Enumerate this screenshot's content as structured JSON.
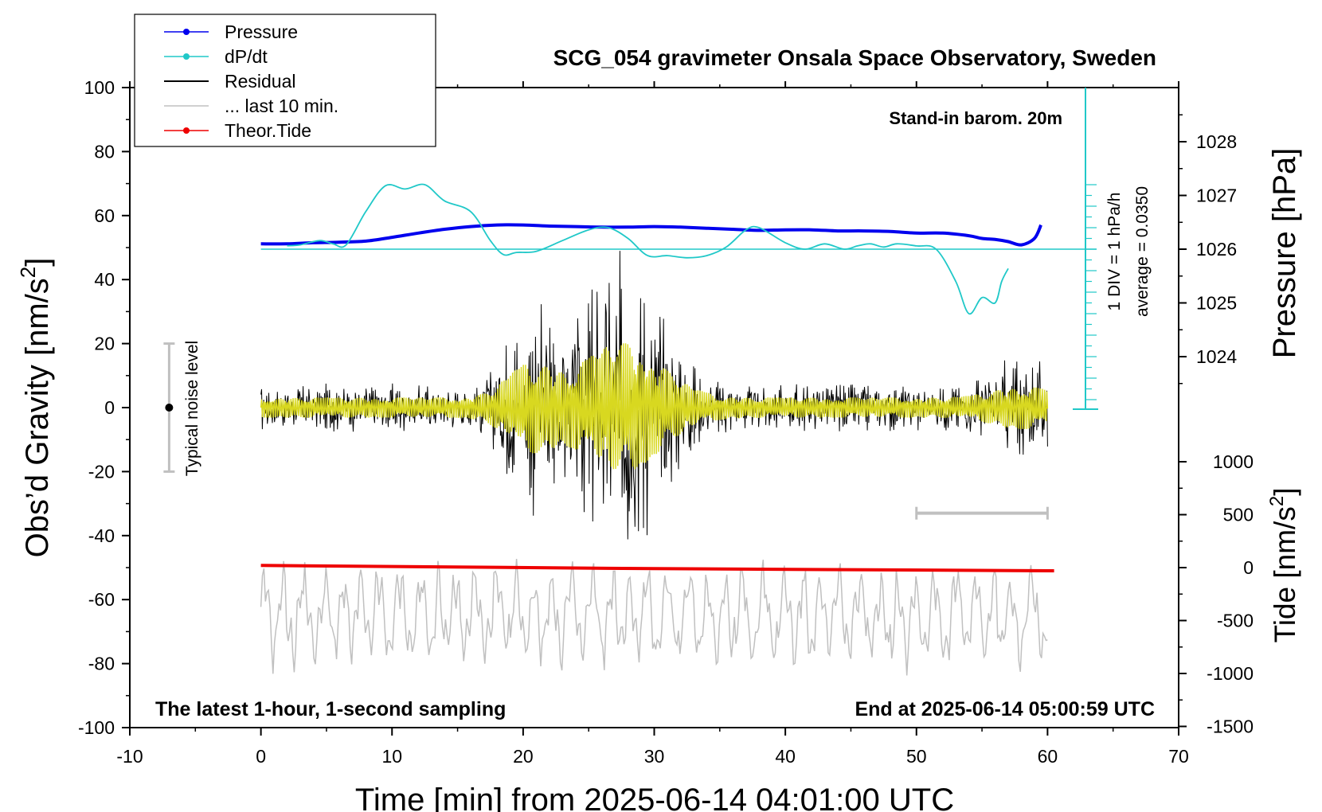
{
  "chart_data": {
    "type": "line",
    "title": "SCG_054 gravimeter Onsala Space Observatory, Sweden",
    "xlabel": "Time [min] from 2025-06-14 04:01:00 UTC",
    "ylabel_left": {
      "main": "Obs’d Gravity [nm/s",
      "sup": "2",
      "end": "]"
    },
    "ylabel_right_top": "Pressure [hPa]",
    "ylabel_right_bottom": {
      "main": "Tide [nm/s",
      "sup": "2",
      "end": "]"
    },
    "xlim": [
      -10,
      70
    ],
    "ylim_left": [
      -100,
      100
    ],
    "x_ticks": [
      "-10",
      "0",
      "10",
      "20",
      "30",
      "40",
      "50",
      "60",
      "70"
    ],
    "y_ticks_left": [
      "100",
      "80",
      "60",
      "40",
      "20",
      "0",
      "-20",
      "-40",
      "-60",
      "-80",
      "-100"
    ],
    "pressure_ticks": [
      "1028",
      "1027",
      "1026",
      "1025",
      "1024"
    ],
    "tide_ticks": [
      "1000",
      "500",
      "0",
      "-500",
      "-1000",
      "-1500"
    ],
    "annotations": {
      "barometer": "Stand-in barom. 20m",
      "latest": "The latest 1-hour, 1-second sampling",
      "end_time": "End at 2025-06-14 05:00:59 UTC",
      "noise": "Typical noise level",
      "div": "1 DIV = 1 hPa/h",
      "average": "average = 0.0350"
    },
    "legend": [
      {
        "label": "Pressure",
        "color": "#0000ee",
        "marker": true
      },
      {
        "label": "dP/dt",
        "color": "#20c8c8",
        "marker": true
      },
      {
        "label": "Residual",
        "color": "#000000",
        "marker": false
      },
      {
        "label": "... last 10 min.",
        "color": "#c0c0c0",
        "marker": false
      },
      {
        "label": "Theor.Tide",
        "color": "#ee0000",
        "marker": true
      }
    ],
    "series": {
      "pressure_hpa": {
        "name": "Pressure",
        "x": [
          0,
          2,
          4,
          6,
          8,
          10,
          12,
          14,
          16,
          18,
          20,
          22,
          24,
          26,
          28,
          30,
          32,
          34,
          36,
          38,
          40,
          42,
          44,
          46,
          48,
          50,
          52,
          54,
          55,
          56,
          57,
          58,
          59,
          59.5
        ],
        "y": [
          1026.1,
          1026.1,
          1026.12,
          1026.13,
          1026.15,
          1026.22,
          1026.3,
          1026.37,
          1026.42,
          1026.45,
          1026.45,
          1026.43,
          1026.42,
          1026.41,
          1026.41,
          1026.42,
          1026.41,
          1026.39,
          1026.37,
          1026.35,
          1026.36,
          1026.36,
          1026.34,
          1026.34,
          1026.33,
          1026.3,
          1026.3,
          1026.25,
          1026.2,
          1026.18,
          1026.14,
          1026.08,
          1026.2,
          1026.45
        ]
      },
      "dpdt": {
        "name": "dP/dt",
        "x": [
          2,
          3,
          4.5,
          5.5,
          6.5,
          8,
          9.5,
          11,
          12.5,
          14,
          16,
          17.5,
          18.5,
          19.5,
          21,
          23,
          25,
          26.5,
          28,
          29.5,
          31,
          32.5,
          34,
          35.5,
          37,
          38,
          40,
          41.5,
          43,
          44.5,
          45.5,
          46.5,
          47.5,
          48.5,
          50,
          51.5,
          53,
          54,
          55,
          56,
          56.5,
          57
        ],
        "y": [
          0.32,
          0.4,
          0.8,
          0.5,
          0.4,
          3.5,
          5.9,
          5.6,
          6.0,
          4.5,
          3.5,
          0.8,
          -0.5,
          -0.3,
          -0.2,
          0.8,
          1.8,
          2.0,
          1.0,
          -0.6,
          -0.6,
          -0.8,
          -0.6,
          0.2,
          1.8,
          2.0,
          0.6,
          0.0,
          0.5,
          0.0,
          0.3,
          0.5,
          0.2,
          0.5,
          0.3,
          0.0,
          -3.0,
          -6.0,
          -4.5,
          -5.0,
          -3.0,
          -1.8
        ]
      },
      "residual": {
        "name": "Residual",
        "x_range": [
          0,
          60
        ],
        "ylim": [
          -47,
          49
        ]
      },
      "last_10_min": {
        "name": "... last 10 min."
      },
      "theor_tide": {
        "name": "Theor.Tide",
        "x": [
          0,
          30,
          60.5
        ],
        "y": [
          20,
          -10,
          -30
        ]
      }
    },
    "noise_bar": {
      "x": -7,
      "y": 0,
      "low": -20,
      "high": 20
    },
    "scale_bar": {
      "x_start": 50,
      "x_end": 60,
      "y": -33
    }
  }
}
